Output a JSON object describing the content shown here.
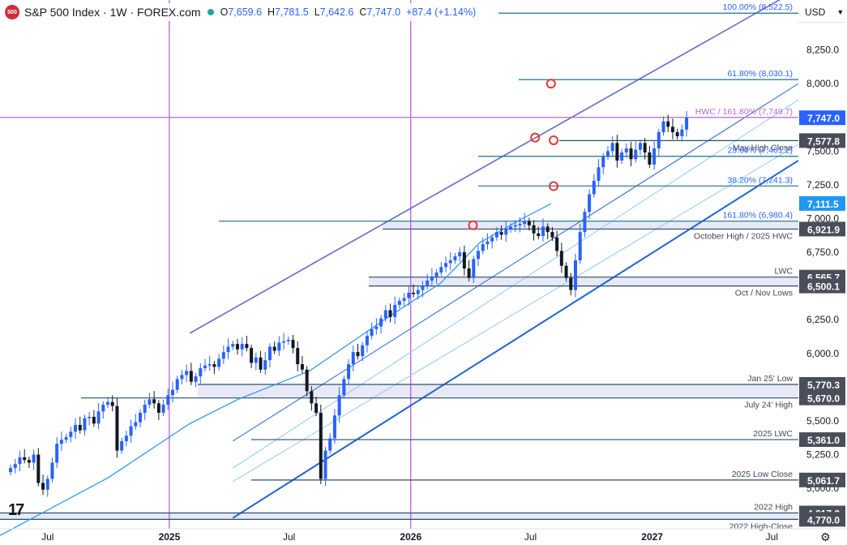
{
  "header": {
    "logo_text": "500",
    "title": "S&P 500 Index · 1W · FOREX.com",
    "ohlc": [
      {
        "k": "O",
        "v": "7,659.6"
      },
      {
        "k": "H",
        "v": "7,781.5"
      },
      {
        "k": "L",
        "v": "7,642.6"
      },
      {
        "k": "C",
        "v": "7,747.0"
      }
    ],
    "change": "+87.4 (+1.14%)"
  },
  "currency": {
    "label": "USD",
    "chevron": "chevron-down-icon"
  },
  "tv_logo": "17",
  "settings_icon": "gear-icon",
  "colors": {
    "up": "#2962ff",
    "down": "#131722",
    "ma": "#2196f3",
    "channel_dark": "#5b63c9",
    "channel_light": "#90caf9",
    "channel_main": "#1e63d0",
    "level": "#2a4f6a",
    "fib": "#1f6f8b",
    "vertical": "#a334c9",
    "hwc": "#b469c9",
    "marker": "#e53935",
    "price_tag": "#2962ff",
    "label_tag": "#505461"
  },
  "chart_data": {
    "type": "candlestick",
    "timeframe": "1W",
    "ylim": [
      4700,
      8620
    ],
    "y_ticks": [
      "8,250.0",
      "8,000.0",
      "7,500.0",
      "7,250.0",
      "7,000.0",
      "6,750.0",
      "6,250.0",
      "6,000.0",
      "5,500.0",
      "5,250.0",
      "5,000.0"
    ],
    "y_tick_values": [
      8250,
      8000,
      7500,
      7250,
      7000,
      6750,
      6250,
      6000,
      5500,
      5250,
      5000
    ],
    "x_range": [
      "2024-04-20",
      "2027-08-10"
    ],
    "x_ticks": [
      {
        "label": "Jul",
        "date": "2024-07-01"
      },
      {
        "label": "2025",
        "date": "2025-01-01"
      },
      {
        "label": "Jul",
        "date": "2025-07-01"
      },
      {
        "label": "2026",
        "date": "2026-01-01"
      },
      {
        "label": "Jul",
        "date": "2026-07-01"
      },
      {
        "label": "2027",
        "date": "2027-01-01"
      },
      {
        "label": "Jul",
        "date": "2027-07-01"
      }
    ],
    "vertical_markers": [
      "2025-01-01",
      "2026-01-01"
    ],
    "candles_close": [
      5150,
      5180,
      5230,
      5210,
      5190,
      5250,
      5040,
      4990,
      5070,
      5190,
      5330,
      5360,
      5380,
      5420,
      5470,
      5430,
      5520,
      5530,
      5480,
      5570,
      5620,
      5640,
      5610,
      5280,
      5350,
      5390,
      5460,
      5490,
      5560,
      5620,
      5660,
      5630,
      5560,
      5620,
      5690,
      5730,
      5810,
      5840,
      5870,
      5790,
      5830,
      5890,
      5910,
      5920,
      5900,
      5960,
      6010,
      6050,
      6070,
      6030,
      6070,
      6040,
      5930,
      5970,
      5880,
      5950,
      6050,
      6020,
      6080,
      6090,
      6100,
      6040,
      5920,
      5880,
      5720,
      5630,
      5560,
      5070,
      5280,
      5370,
      5540,
      5690,
      5810,
      5920,
      6010,
      5980,
      6060,
      6130,
      6180,
      6200,
      6260,
      6320,
      6270,
      6360,
      6390,
      6410,
      6450,
      6440,
      6470,
      6500,
      6540,
      6570,
      6600,
      6640,
      6670,
      6690,
      6720,
      6750,
      6630,
      6560,
      6700,
      6760,
      6810,
      6830,
      6860,
      6900,
      6880,
      6920,
      6940,
      6950,
      6960,
      6980,
      6950,
      6890,
      6870,
      6940,
      6900,
      6860,
      6760,
      6650,
      6560,
      6470,
      6690,
      6900,
      7050,
      7180,
      7280,
      7380,
      7460,
      7500,
      7560,
      7430,
      7490,
      7520,
      7440,
      7510,
      7560,
      7490,
      7400,
      7520,
      7640,
      7720,
      7680,
      7640,
      7610,
      7660,
      7747
    ],
    "moving_average": {
      "name": "",
      "points": [
        {
          "date": "2024-04-20",
          "v": 4650
        },
        {
          "date": "2024-10-01",
          "v": 5080
        },
        {
          "date": "2025-02-01",
          "v": 5480
        },
        {
          "date": "2025-04-15",
          "v": 5660
        },
        {
          "date": "2025-08-01",
          "v": 5870
        },
        {
          "date": "2025-12-01",
          "v": 6280
        },
        {
          "date": "2026-02-15",
          "v": 6520
        },
        {
          "date": "2026-04-15",
          "v": 6820
        },
        {
          "date": "2026-06-15",
          "v": 6990
        },
        {
          "date": "2026-08-01",
          "v": 7110
        }
      ]
    },
    "trend_lines": [
      {
        "role": "upper",
        "points": [
          {
            "date": "2025-02-01",
            "v": 6150
          },
          {
            "date": "2027-08-10",
            "v": 8700
          }
        ]
      },
      {
        "role": "upper-mid",
        "points": [
          {
            "date": "2025-04-07",
            "v": 5350
          },
          {
            "date": "2027-08-10",
            "v": 8000
          }
        ]
      },
      {
        "role": "upper-lower",
        "points": [
          {
            "date": "2025-04-07",
            "v": 5150
          },
          {
            "date": "2027-08-10",
            "v": 7880
          }
        ]
      },
      {
        "role": "lower",
        "points": [
          {
            "date": "2025-04-07",
            "v": 4780
          },
          {
            "date": "2027-08-10",
            "v": 7430
          }
        ]
      },
      {
        "role": "median",
        "points": [
          {
            "date": "2025-04-07",
            "v": 5050
          },
          {
            "date": "2027-08-10",
            "v": 7550
          }
        ]
      }
    ],
    "levels": [
      {
        "v": 8522.5,
        "text": "100.00% (8,522.5)",
        "kind": "fib"
      },
      {
        "v": 8030.1,
        "text": "61.80% (8,030.1)",
        "kind": "fib"
      },
      {
        "v": 7749.7,
        "text": "HWC / 161.80% (7,749.7)",
        "kind": "hwc"
      },
      {
        "v": 7577.8,
        "text": "May High Close",
        "kind": "level"
      },
      {
        "v": 7461.2,
        "text": "23.60% (7,461.2)",
        "kind": "fib"
      },
      {
        "v": 7241.3,
        "text": "38.20% (7,241.3)",
        "kind": "fib"
      },
      {
        "v": 6980.4,
        "text": "161.80% (6,980.4)",
        "kind": "fib"
      },
      {
        "v": 6921.9,
        "text": "October High / 2025 HWC",
        "kind": "level"
      },
      {
        "v": 6565.7,
        "text": "LWC",
        "kind": "level"
      },
      {
        "v": 6500.1,
        "text": "Oct / Nov Lows",
        "kind": "level"
      },
      {
        "v": 5770.3,
        "text": "Jan 25' Low",
        "kind": "level"
      },
      {
        "v": 5670.0,
        "text": "July 24' High",
        "kind": "level"
      },
      {
        "v": 5361.0,
        "text": "2025 LWC",
        "kind": "level"
      },
      {
        "v": 5061.7,
        "text": "2025 Low Close",
        "kind": "level"
      },
      {
        "v": 4817.2,
        "text": "2022 High",
        "kind": "level"
      },
      {
        "v": 4770.0,
        "text": "2022 High-Close",
        "kind": "level"
      }
    ],
    "price_tags": [
      {
        "v": 7747.0,
        "text": "7,747.0",
        "style": "last"
      },
      {
        "v": 7577.8,
        "text": "7,577.8",
        "style": "level"
      },
      {
        "v": 7111.5,
        "text": "7,111.5",
        "style": "ma"
      },
      {
        "v": 6921.9,
        "text": "6,921.9",
        "style": "level"
      },
      {
        "v": 6565.7,
        "text": "6,565.7",
        "style": "level"
      },
      {
        "v": 6500.1,
        "text": "6,500.1",
        "style": "level"
      },
      {
        "v": 5770.3,
        "text": "5,770.3",
        "style": "level"
      },
      {
        "v": 5670.0,
        "text": "5,670.0",
        "style": "level"
      },
      {
        "v": 5361.0,
        "text": "5,361.0",
        "style": "level"
      },
      {
        "v": 5061.7,
        "text": "5,061.7",
        "style": "level"
      },
      {
        "v": 4817.2,
        "text": "4,817.2",
        "style": "level"
      },
      {
        "v": 4770.0,
        "text": "4,770.0",
        "style": "level"
      }
    ],
    "markers": [
      {
        "date": "2026-08-01",
        "v": 8000
      },
      {
        "date": "2026-07-08",
        "v": 7600
      },
      {
        "date": "2026-08-05",
        "v": 7580
      },
      {
        "date": "2026-08-05",
        "v": 7240
      },
      {
        "date": "2026-04-05",
        "v": 6950
      }
    ]
  }
}
